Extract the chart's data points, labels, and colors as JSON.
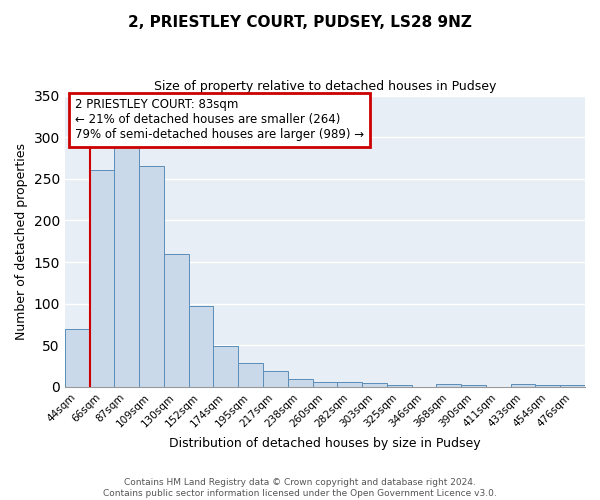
{
  "title": "2, PRIESTLEY COURT, PUDSEY, LS28 9NZ",
  "subtitle": "Size of property relative to detached houses in Pudsey",
  "xlabel": "Distribution of detached houses by size in Pudsey",
  "ylabel": "Number of detached properties",
  "bin_labels": [
    "44sqm",
    "66sqm",
    "87sqm",
    "109sqm",
    "130sqm",
    "152sqm",
    "174sqm",
    "195sqm",
    "217sqm",
    "238sqm",
    "260sqm",
    "282sqm",
    "303sqm",
    "325sqm",
    "346sqm",
    "368sqm",
    "390sqm",
    "411sqm",
    "433sqm",
    "454sqm",
    "476sqm"
  ],
  "bar_values": [
    70,
    260,
    293,
    265,
    160,
    97,
    49,
    29,
    19,
    10,
    6,
    6,
    5,
    2,
    0,
    3,
    2,
    0,
    3,
    2,
    2
  ],
  "bar_color": "#c9d9ea",
  "bar_edge_color": "#5b8db8",
  "ylim": [
    0,
    350
  ],
  "yticks": [
    0,
    50,
    100,
    150,
    200,
    250,
    300,
    350
  ],
  "vline_x": 1,
  "vline_color": "#cc0000",
  "annotation_title": "2 PRIESTLEY COURT: 83sqm",
  "annotation_line1": "← 21% of detached houses are smaller (264)",
  "annotation_line2": "79% of semi-detached houses are larger (989) →",
  "annotation_box_facecolor": "#ffffff",
  "annotation_box_edgecolor": "#cc0000",
  "footer_line1": "Contains HM Land Registry data © Crown copyright and database right 2024.",
  "footer_line2": "Contains public sector information licensed under the Open Government Licence v3.0.",
  "fig_facecolor": "#ffffff",
  "plot_facecolor": "#e8eef5"
}
